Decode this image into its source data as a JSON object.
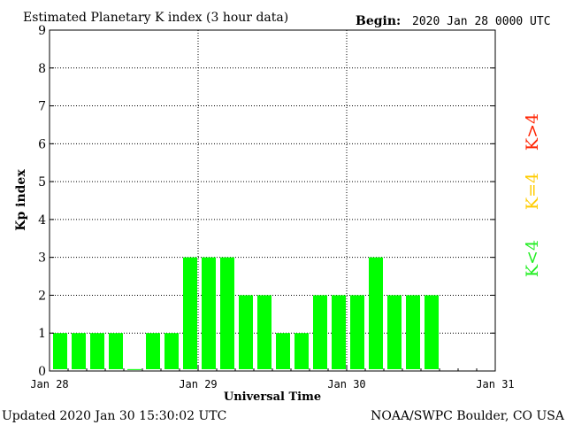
{
  "header": {
    "title": "Estimated Planetary K index (3 hour data)",
    "begin_label": "Begin:",
    "begin_value": "2020 Jan 28 0000 UTC"
  },
  "footer": {
    "updated": "Updated 2020 Jan 30 15:30:02 UTC",
    "credit": "NOAA/SWPC Boulder, CO USA"
  },
  "legend": {
    "high": "K>4",
    "mid": "K=4",
    "low": "K<4",
    "colors": {
      "high": "#ff2200",
      "mid": "#ffcc00",
      "low": "#22ee22"
    }
  },
  "chart_data": {
    "type": "bar",
    "title": "Estimated Planetary K index (3 hour data)",
    "xlabel": "Universal Time",
    "ylabel": "Kp index",
    "ylim": [
      0,
      9
    ],
    "yticks": [
      0,
      1,
      2,
      3,
      4,
      5,
      6,
      7,
      8,
      9
    ],
    "xlim_days": [
      0,
      3
    ],
    "xtick_labels": [
      "Jan 28",
      "Jan 29",
      "Jan 30",
      "Jan 31"
    ],
    "grid": true,
    "bar_color": "#00ff00",
    "interval_hours": 3,
    "series": [
      {
        "values": [
          1,
          1,
          1,
          1,
          0.05,
          1,
          1,
          3,
          3,
          3,
          2,
          2,
          1,
          1,
          2,
          2,
          2,
          3,
          2,
          2,
          2
        ]
      }
    ]
  }
}
